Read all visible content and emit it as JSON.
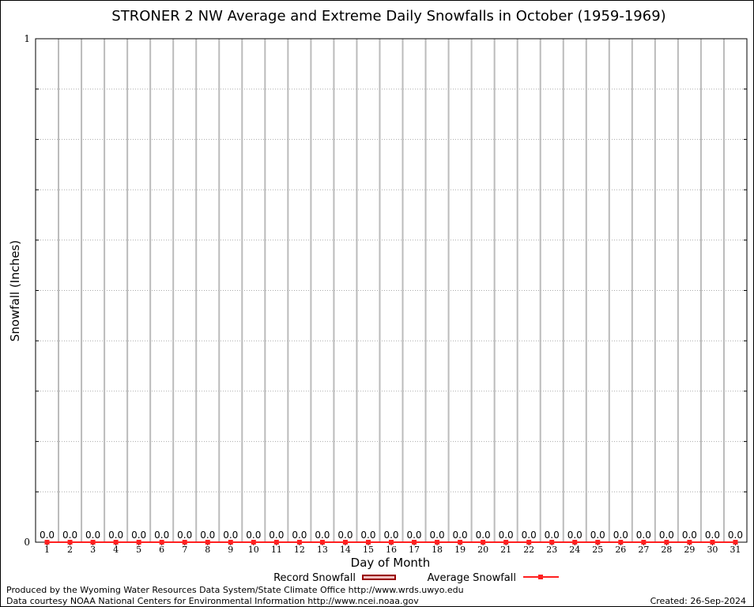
{
  "chart_data": {
    "type": "bar",
    "title": "STRONER 2 NW Average and Extreme Daily Snowfalls in October (1959-1969)",
    "xlabel": "Day of Month",
    "ylabel": "Snowfall (Inches)",
    "xlim": [
      0.5,
      31.5
    ],
    "ylim": [
      0,
      1
    ],
    "y_ticks": [
      "0",
      "1"
    ],
    "grid": true,
    "categories": [
      "1",
      "2",
      "3",
      "4",
      "5",
      "6",
      "7",
      "8",
      "9",
      "10",
      "11",
      "12",
      "13",
      "14",
      "15",
      "16",
      "17",
      "18",
      "19",
      "20",
      "21",
      "22",
      "23",
      "24",
      "25",
      "26",
      "27",
      "28",
      "29",
      "30",
      "31"
    ],
    "series": [
      {
        "name": "Record Snowfall",
        "type": "bar",
        "color": "#990000",
        "values": [
          0,
          0,
          0,
          0,
          0,
          0,
          0,
          0,
          0,
          0,
          0,
          0,
          0,
          0,
          0,
          0,
          0,
          0,
          0,
          0,
          0,
          0,
          0,
          0,
          0,
          0,
          0,
          0,
          0,
          0,
          0
        ]
      },
      {
        "name": "Average Snowfall",
        "type": "line",
        "color": "#ff2020",
        "values": [
          0,
          0,
          0,
          0,
          0,
          0,
          0,
          0,
          0,
          0,
          0,
          0,
          0,
          0,
          0,
          0,
          0,
          0,
          0,
          0,
          0,
          0,
          0,
          0,
          0,
          0,
          0,
          0,
          0,
          0,
          0
        ]
      }
    ],
    "data_labels": [
      "0.0",
      "0.0",
      "0.0",
      "0.0",
      "0.0",
      "0.0",
      "0.0",
      "0.0",
      "0.0",
      "0.0",
      "0.0",
      "0.0",
      "0.0",
      "0.0",
      "0.0",
      "0.0",
      "0.0",
      "0.0",
      "0.0",
      "0.0",
      "0.0",
      "0.0",
      "0.0",
      "0.0",
      "0.0",
      "0.0",
      "0.0",
      "0.0",
      "0.0",
      "0.0",
      "0.0"
    ],
    "legend_placement": "bottom"
  },
  "footer": {
    "produced_by": "Produced by the Wyoming Water Resources Data System/State Climate Office http://www.wrds.uwyo.edu",
    "data_courtesy": "Data courtesy NOAA National Centers for Environmental Information http://www.ncei.noaa.gov",
    "created": "Created: 26-Sep-2024"
  }
}
